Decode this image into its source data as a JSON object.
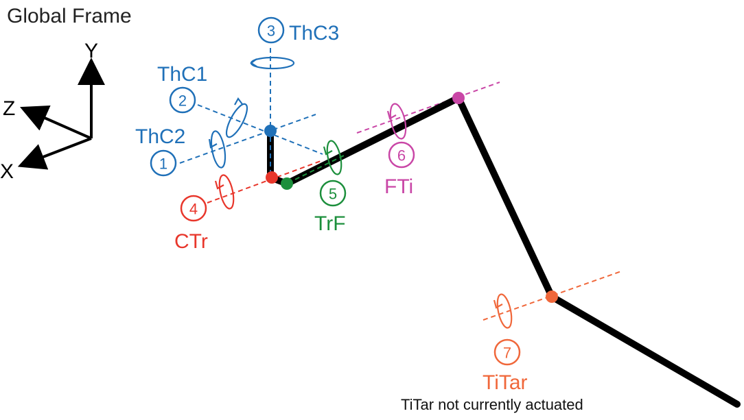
{
  "title": "Global Frame",
  "axes": {
    "y": "Y",
    "z": "Z",
    "x": "X"
  },
  "colors": {
    "blue": "#1f70b8",
    "red": "#e8362b",
    "green": "#1c8f3c",
    "pink": "#c946a6",
    "orange": "#f0673a",
    "limb": "#000000"
  },
  "joints": [
    {
      "number": "1",
      "name": "ThC2"
    },
    {
      "number": "2",
      "name": "ThC1"
    },
    {
      "number": "3",
      "name": "ThC3"
    },
    {
      "number": "4",
      "name": "CTr"
    },
    {
      "number": "5",
      "name": "TrF"
    },
    {
      "number": "6",
      "name": "FTi"
    },
    {
      "number": "7",
      "name": "TiTar"
    }
  ],
  "note": "TiTar not currently actuated"
}
